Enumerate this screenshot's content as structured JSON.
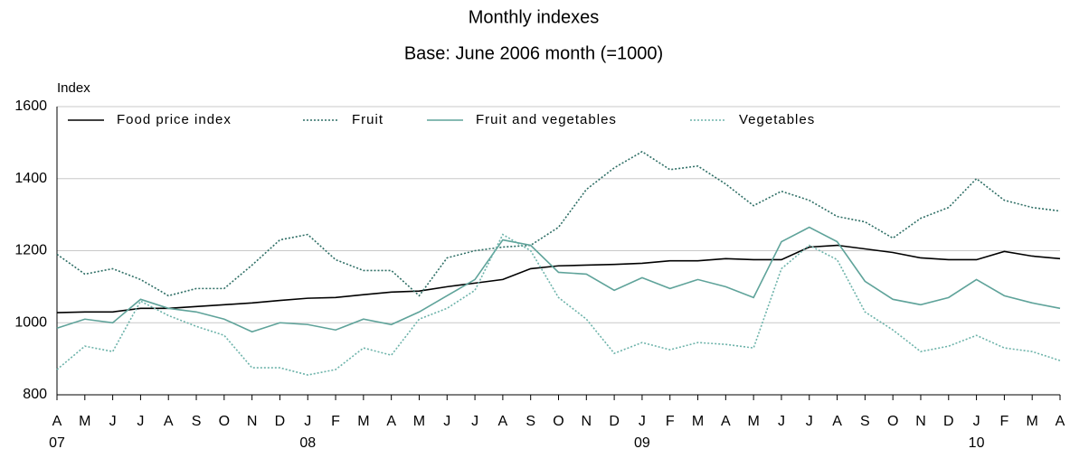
{
  "chart_data": {
    "type": "line",
    "subtitle": "Monthly indexes",
    "note": "Base: June 2006 month (=1000)",
    "y_label": "Index",
    "categories": [
      "A",
      "M",
      "J",
      "J",
      "A",
      "S",
      "O",
      "N",
      "D",
      "J",
      "F",
      "M",
      "A",
      "M",
      "J",
      "J",
      "A",
      "S",
      "O",
      "N",
      "D",
      "J",
      "F",
      "M",
      "A",
      "M",
      "J",
      "J",
      "A",
      "S",
      "O",
      "N",
      "D",
      "J",
      "F",
      "M",
      "A"
    ],
    "year_labels": [
      "07",
      null,
      null,
      null,
      null,
      null,
      null,
      null,
      null,
      "08",
      null,
      null,
      null,
      null,
      null,
      null,
      null,
      null,
      null,
      null,
      null,
      "09",
      null,
      null,
      null,
      null,
      null,
      null,
      null,
      null,
      null,
      null,
      null,
      "10",
      null,
      null,
      null
    ],
    "ylim": [
      800,
      1600
    ],
    "yticks": [
      800,
      1000,
      1200,
      1400,
      1600
    ],
    "grid": true,
    "legend": "top",
    "series": [
      {
        "name": "Food price index",
        "color": "#000000",
        "dash": "solid",
        "values": [
          1028,
          1030,
          1030,
          1040,
          1040,
          1045,
          1050,
          1055,
          1062,
          1068,
          1070,
          1078,
          1085,
          1088,
          1100,
          1110,
          1120,
          1150,
          1158,
          1160,
          1162,
          1165,
          1172,
          1172,
          1178,
          1175,
          1175,
          1210,
          1215,
          1205,
          1195,
          1180,
          1175,
          1175,
          1198,
          1185,
          1178
        ]
      },
      {
        "name": "Fruit",
        "color": "#2f6f66",
        "dash": "dotted",
        "values": [
          1190,
          1135,
          1150,
          1120,
          1075,
          1095,
          1095,
          1160,
          1230,
          1245,
          1175,
          1145,
          1145,
          1075,
          1180,
          1200,
          1210,
          1215,
          1265,
          1370,
          1430,
          1475,
          1425,
          1435,
          1385,
          1325,
          1365,
          1340,
          1295,
          1280,
          1235,
          1290,
          1320,
          1400,
          1340,
          1320,
          1310
        ]
      },
      {
        "name": "Fruit and vegetables",
        "color": "#5fa39a",
        "dash": "solid",
        "values": [
          985,
          1010,
          1000,
          1065,
          1040,
          1030,
          1010,
          975,
          1000,
          995,
          980,
          1010,
          995,
          1030,
          1075,
          1120,
          1230,
          1215,
          1140,
          1135,
          1090,
          1125,
          1095,
          1120,
          1100,
          1070,
          1225,
          1265,
          1225,
          1115,
          1065,
          1050,
          1070,
          1120,
          1075,
          1055,
          1040
        ]
      },
      {
        "name": "Vegetables",
        "color": "#6db3aa",
        "dash": "dotted",
        "values": [
          870,
          935,
          920,
          1060,
          1020,
          990,
          965,
          875,
          875,
          855,
          870,
          930,
          910,
          1010,
          1040,
          1090,
          1245,
          1200,
          1070,
          1010,
          915,
          945,
          925,
          945,
          940,
          930,
          1150,
          1215,
          1175,
          1030,
          980,
          920,
          935,
          965,
          930,
          920,
          895
        ]
      }
    ]
  }
}
